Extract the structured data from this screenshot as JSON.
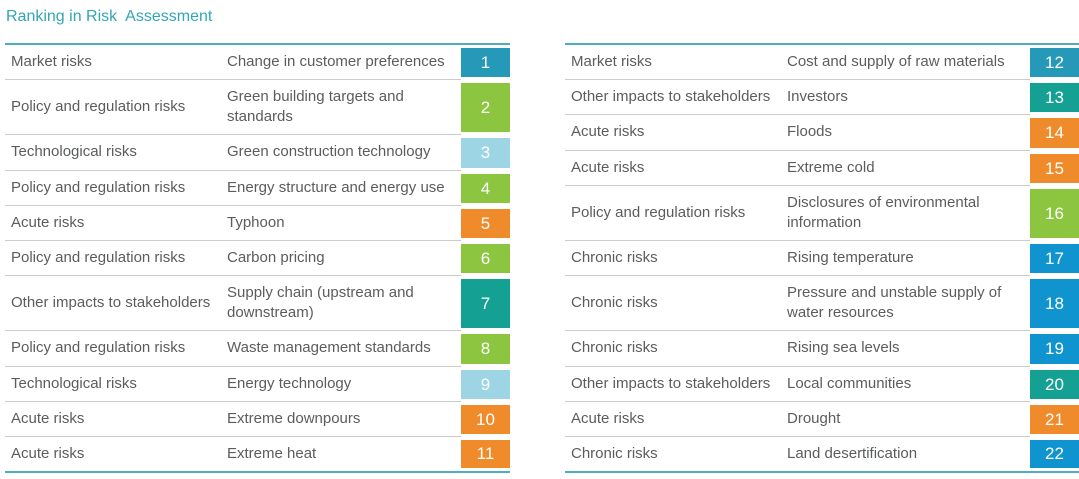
{
  "title": {
    "text": "Ranking in Risk  Assessment"
  },
  "colors": {
    "market": "#2599B7",
    "policy": "#8CC540",
    "technological": "#9DD5E4",
    "acute": "#EF8B2A",
    "stakeholders": "#14A093",
    "chronic": "#0F94CF",
    "table_border": "#4FAEBC",
    "row_divider": "#CBCBCB",
    "text": "#5A5C5E",
    "title": "#33A6B5"
  },
  "tables": [
    {
      "name": "left",
      "rows": [
        {
          "category": "Market risks",
          "risk": "Change in customer preferences",
          "rank": "1",
          "type": "market"
        },
        {
          "category": "Policy and regulation risks",
          "risk": "Green building targets and standards",
          "rank": "2",
          "type": "policy"
        },
        {
          "category": "Technological risks",
          "risk": "Green construction technology",
          "rank": "3",
          "type": "technological"
        },
        {
          "category": "Policy and regulation risks",
          "risk": "Energy structure and energy use",
          "rank": "4",
          "type": "policy"
        },
        {
          "category": "Acute risks",
          "risk": "Typhoon",
          "rank": "5",
          "type": "acute"
        },
        {
          "category": "Policy and regulation risks",
          "risk": "Carbon pricing",
          "rank": "6",
          "type": "policy"
        },
        {
          "category": "Other impacts to stakeholders",
          "risk": "Supply chain (upstream and downstream)",
          "rank": "7",
          "type": "stakeholders"
        },
        {
          "category": "Policy and regulation risks",
          "risk": "Waste management standards",
          "rank": "8",
          "type": "policy"
        },
        {
          "category": "Technological risks",
          "risk": "Energy technology",
          "rank": "9",
          "type": "technological"
        },
        {
          "category": "Acute risks",
          "risk": "Extreme downpours",
          "rank": "10",
          "type": "acute"
        },
        {
          "category": "Acute risks",
          "risk": "Extreme heat",
          "rank": "11",
          "type": "acute"
        }
      ]
    },
    {
      "name": "right",
      "rows": [
        {
          "category": "Market risks",
          "risk": "Cost and supply of raw materials",
          "rank": "12",
          "type": "market"
        },
        {
          "category": "Other impacts to stakeholders",
          "risk": "Investors",
          "rank": "13",
          "type": "stakeholders"
        },
        {
          "category": "Acute risks",
          "risk": "Floods",
          "rank": "14",
          "type": "acute"
        },
        {
          "category": "Acute risks",
          "risk": "Extreme cold",
          "rank": "15",
          "type": "acute"
        },
        {
          "category": "Policy and regulation risks",
          "risk": "Disclosures of environmental information",
          "rank": "16",
          "type": "policy"
        },
        {
          "category": "Chronic risks",
          "risk": "Rising temperature",
          "rank": "17",
          "type": "chronic"
        },
        {
          "category": "Chronic risks",
          "risk": "Pressure and unstable supply of water resources",
          "rank": "18",
          "type": "chronic"
        },
        {
          "category": "Chronic risks",
          "risk": "Rising sea levels",
          "rank": "19",
          "type": "chronic"
        },
        {
          "category": "Other impacts to stakeholders",
          "risk": "Local communities",
          "rank": "20",
          "type": "stakeholders"
        },
        {
          "category": "Acute risks",
          "risk": "Drought",
          "rank": "21",
          "type": "acute"
        },
        {
          "category": "Chronic risks",
          "risk": "Land desertification",
          "rank": "22",
          "type": "chronic"
        }
      ]
    }
  ]
}
